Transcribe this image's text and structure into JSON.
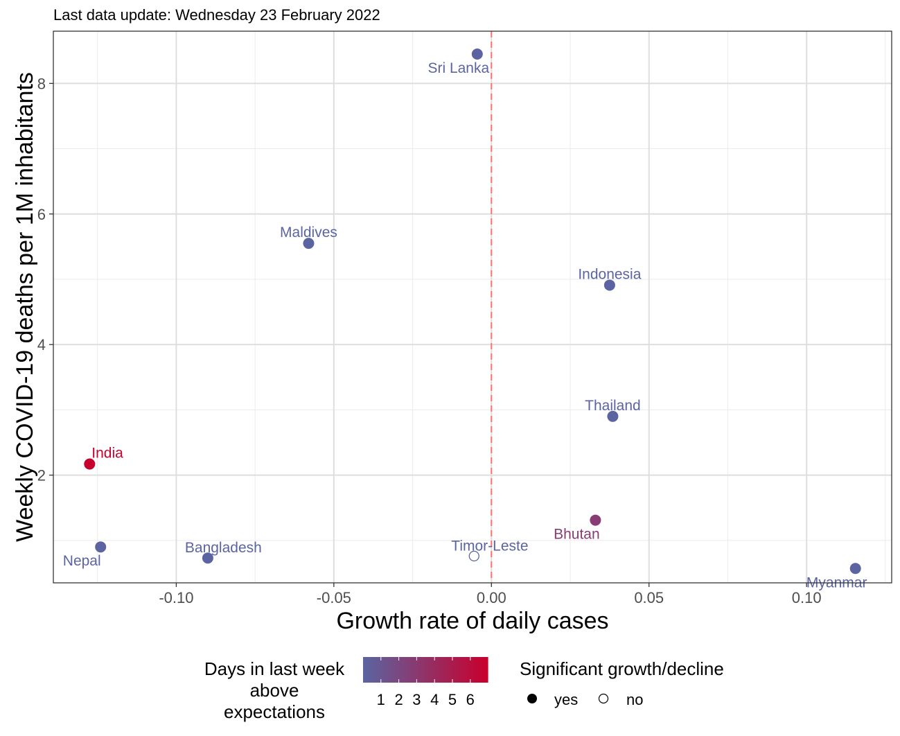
{
  "chart_data": {
    "type": "scatter",
    "subtitle": "Last data update: Wednesday 23 February 2022",
    "xlabel": "Growth rate of daily cases",
    "ylabel": "Weekly COVID-19 deaths per 1M inhabitants",
    "xlim": [
      -0.139,
      0.127
    ],
    "ylim": [
      0.35,
      8.8
    ],
    "x_ticks": [
      -0.1,
      -0.05,
      0.0,
      0.05,
      0.1
    ],
    "x_tick_labels": [
      "-0.10",
      "-0.05",
      "0.00",
      "0.05",
      "0.10"
    ],
    "y_ticks": [
      2,
      4,
      6,
      8
    ],
    "y_tick_labels": [
      "2",
      "4",
      "6",
      "8"
    ],
    "reference_line": {
      "x": 0,
      "color": "#f8766d",
      "style": "dashed"
    },
    "grid": true,
    "points": [
      {
        "label": "Sri Lanka",
        "x": -0.0045,
        "y": 8.45,
        "days": 1,
        "significant": true,
        "label_pos": "below-left"
      },
      {
        "label": "Maldives",
        "x": -0.058,
        "y": 5.55,
        "days": 1,
        "significant": true,
        "label_pos": "above"
      },
      {
        "label": "Indonesia",
        "x": 0.0375,
        "y": 4.91,
        "days": 1,
        "significant": true,
        "label_pos": "above"
      },
      {
        "label": "Thailand",
        "x": 0.0385,
        "y": 2.9,
        "days": 1,
        "significant": true,
        "label_pos": "above"
      },
      {
        "label": "India",
        "x": -0.1275,
        "y": 2.17,
        "days": 6,
        "significant": true,
        "label_pos": "above-right"
      },
      {
        "label": "Bhutan",
        "x": 0.033,
        "y": 1.31,
        "days": 3,
        "significant": true,
        "label_pos": "below-left"
      },
      {
        "label": "Nepal",
        "x": -0.124,
        "y": 0.9,
        "days": 1,
        "significant": true,
        "label_pos": "below-left"
      },
      {
        "label": "Bangladesh",
        "x": -0.09,
        "y": 0.73,
        "days": 1,
        "significant": true,
        "label_pos": "above-right"
      },
      {
        "label": "Timor-Leste",
        "x": -0.0055,
        "y": 0.76,
        "days": 1,
        "significant": false,
        "label_pos": "above-right"
      },
      {
        "label": "Myanmar",
        "x": 0.1155,
        "y": 0.57,
        "days": 1,
        "significant": true,
        "label_pos": "below-left"
      }
    ],
    "legend_color": {
      "title": "Days in last week above expectations",
      "title_lines": [
        "Days in last week",
        "above",
        "expectations"
      ],
      "levels": [
        "1",
        "2",
        "3",
        "4",
        "5",
        "6"
      ],
      "low_color": "#5b64a1",
      "high_color": "#c8002d",
      "position": "bottom"
    },
    "legend_shape": {
      "title": "Significant growth/decline",
      "entries": [
        "yes",
        "no"
      ],
      "position": "bottom"
    }
  }
}
